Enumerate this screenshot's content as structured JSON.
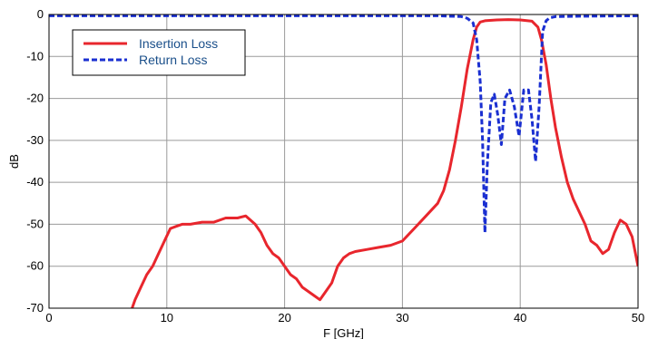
{
  "chart_data": {
    "type": "line",
    "title": "",
    "xlabel": "F [GHz]",
    "ylabel": "dB",
    "xlim": [
      0,
      50
    ],
    "ylim": [
      -70,
      0
    ],
    "xticks": [
      0,
      10,
      20,
      30,
      40,
      50
    ],
    "yticks": [
      0,
      -10,
      -20,
      -30,
      -40,
      -50,
      -60,
      -70
    ],
    "grid": true,
    "legend_position": "top-left",
    "series": [
      {
        "name": "Insertion Loss",
        "color": "#e8262d",
        "style": "solid",
        "x": [
          6.3,
          6.8,
          7.3,
          7.8,
          8.3,
          8.8,
          9.3,
          9.8,
          10.3,
          10.8,
          11.3,
          12,
          13,
          14,
          15,
          16,
          16.7,
          17.5,
          18,
          18.5,
          19,
          19.5,
          20,
          20.5,
          21,
          21.5,
          22,
          22.5,
          23,
          23.5,
          24,
          24.5,
          25,
          25.5,
          26,
          27,
          28,
          29,
          30,
          31,
          32,
          33,
          33.5,
          34,
          34.5,
          35,
          35.5,
          36,
          36.3,
          36.6,
          37,
          38,
          39,
          40,
          41,
          41.5,
          41.8,
          42.2,
          42.6,
          43,
          43.5,
          44,
          44.5,
          45,
          45.5,
          46,
          46.5,
          47,
          47.5,
          48,
          48.5,
          49,
          49.5,
          50
        ],
        "y": [
          -71,
          -72,
          -68,
          -65,
          -62,
          -60,
          -57,
          -54,
          -51,
          -50.5,
          -50,
          -50,
          -49.5,
          -49.5,
          -48.5,
          -48.5,
          -48,
          -50,
          -52,
          -55,
          -57,
          -58,
          -60,
          -62,
          -63,
          -65,
          -66,
          -67,
          -68,
          -66,
          -64,
          -60,
          -58,
          -57,
          -56.5,
          -56,
          -55.5,
          -55,
          -54,
          -51,
          -48,
          -45,
          -42,
          -37,
          -30,
          -22,
          -13,
          -6,
          -3,
          -1.8,
          -1.5,
          -1.3,
          -1.2,
          -1.3,
          -1.6,
          -3,
          -6,
          -12,
          -20,
          -27,
          -34,
          -40,
          -44,
          -47,
          -50,
          -54,
          -55,
          -57,
          -56,
          -52,
          -49,
          -50,
          -53,
          -60
        ]
      },
      {
        "name": "Return Loss",
        "color": "#1a2fd1",
        "style": "dashed",
        "x": [
          0,
          10,
          20,
          30,
          33,
          35,
          35.5,
          36,
          36.3,
          36.6,
          36.8,
          37,
          37.2,
          37.5,
          37.8,
          38.1,
          38.4,
          38.7,
          39.1,
          39.5,
          39.9,
          40.3,
          40.7,
          41,
          41.3,
          41.6,
          41.9,
          42.2,
          42.5,
          43,
          45,
          50
        ],
        "y": [
          -0.3,
          -0.3,
          -0.3,
          -0.3,
          -0.3,
          -0.5,
          -0.9,
          -2,
          -6,
          -16,
          -30,
          -52,
          -36,
          -21,
          -19,
          -24,
          -31,
          -20,
          -18,
          -22,
          -29,
          -18,
          -18,
          -25,
          -35,
          -22,
          -4,
          -1.5,
          -0.8,
          -0.5,
          -0.4,
          -0.3
        ]
      }
    ]
  }
}
